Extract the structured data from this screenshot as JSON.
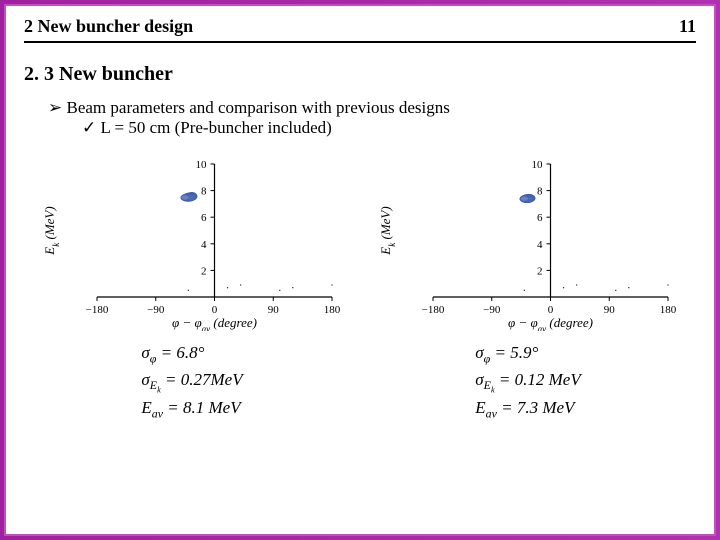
{
  "header": {
    "title": "2 New buncher design",
    "page_number": "11"
  },
  "section_title": "2. 3 New buncher",
  "bullets": {
    "l1": "Beam parameters and comparison with previous designs",
    "l2": "L = 50 cm (Pre-buncher included)"
  },
  "chart_common": {
    "type": "scatter-phase",
    "xlim": [
      -180,
      180
    ],
    "ylim": [
      0,
      10
    ],
    "xtick_step": 90,
    "ytick_step": 2,
    "background_color": "#ffffff",
    "axis_color": "#000000",
    "tick_fontsize": 11,
    "label_fontsize": 13,
    "ylabel": "E_k (MeV)"
  },
  "left_chart": {
    "xlabel": "φ − φ_av  (degree)",
    "xticks": [
      "−180",
      "−90",
      "0",
      "90",
      "180"
    ],
    "yticks": [
      "2",
      "4",
      "6",
      "8",
      "10"
    ],
    "cluster": {
      "phi_center": -48,
      "e_center": 8.1,
      "phi_spread": 24,
      "e_spread": 1.3,
      "line_color": "#4060b0",
      "fill_color": "#7080c0"
    },
    "equations": {
      "sigma_phi": "σ_φ = 6.8°",
      "sigma_Ek": "σ_Ek = 0.27MeV",
      "E_av": "E_av = 8.1 MeV"
    }
  },
  "right_chart": {
    "xlabel": "φ   φ_av (degree)",
    "xticks": [
      "−180",
      "−90",
      "0",
      "90",
      "180"
    ],
    "yticks": [
      "2",
      "4",
      "6",
      "8",
      "10"
    ],
    "cluster": {
      "phi_center": -42,
      "e_center": 7.9,
      "phi_spread": 18,
      "e_spread": 1.1,
      "line_color": "#4060b0",
      "fill_color": "#7080c0"
    },
    "equations": {
      "sigma_phi": "σ_φ = 5.9°",
      "sigma_Ek": "σ_Ek = 0.12 MeV",
      "E_av": "E_av = 7.3 MeV"
    }
  }
}
